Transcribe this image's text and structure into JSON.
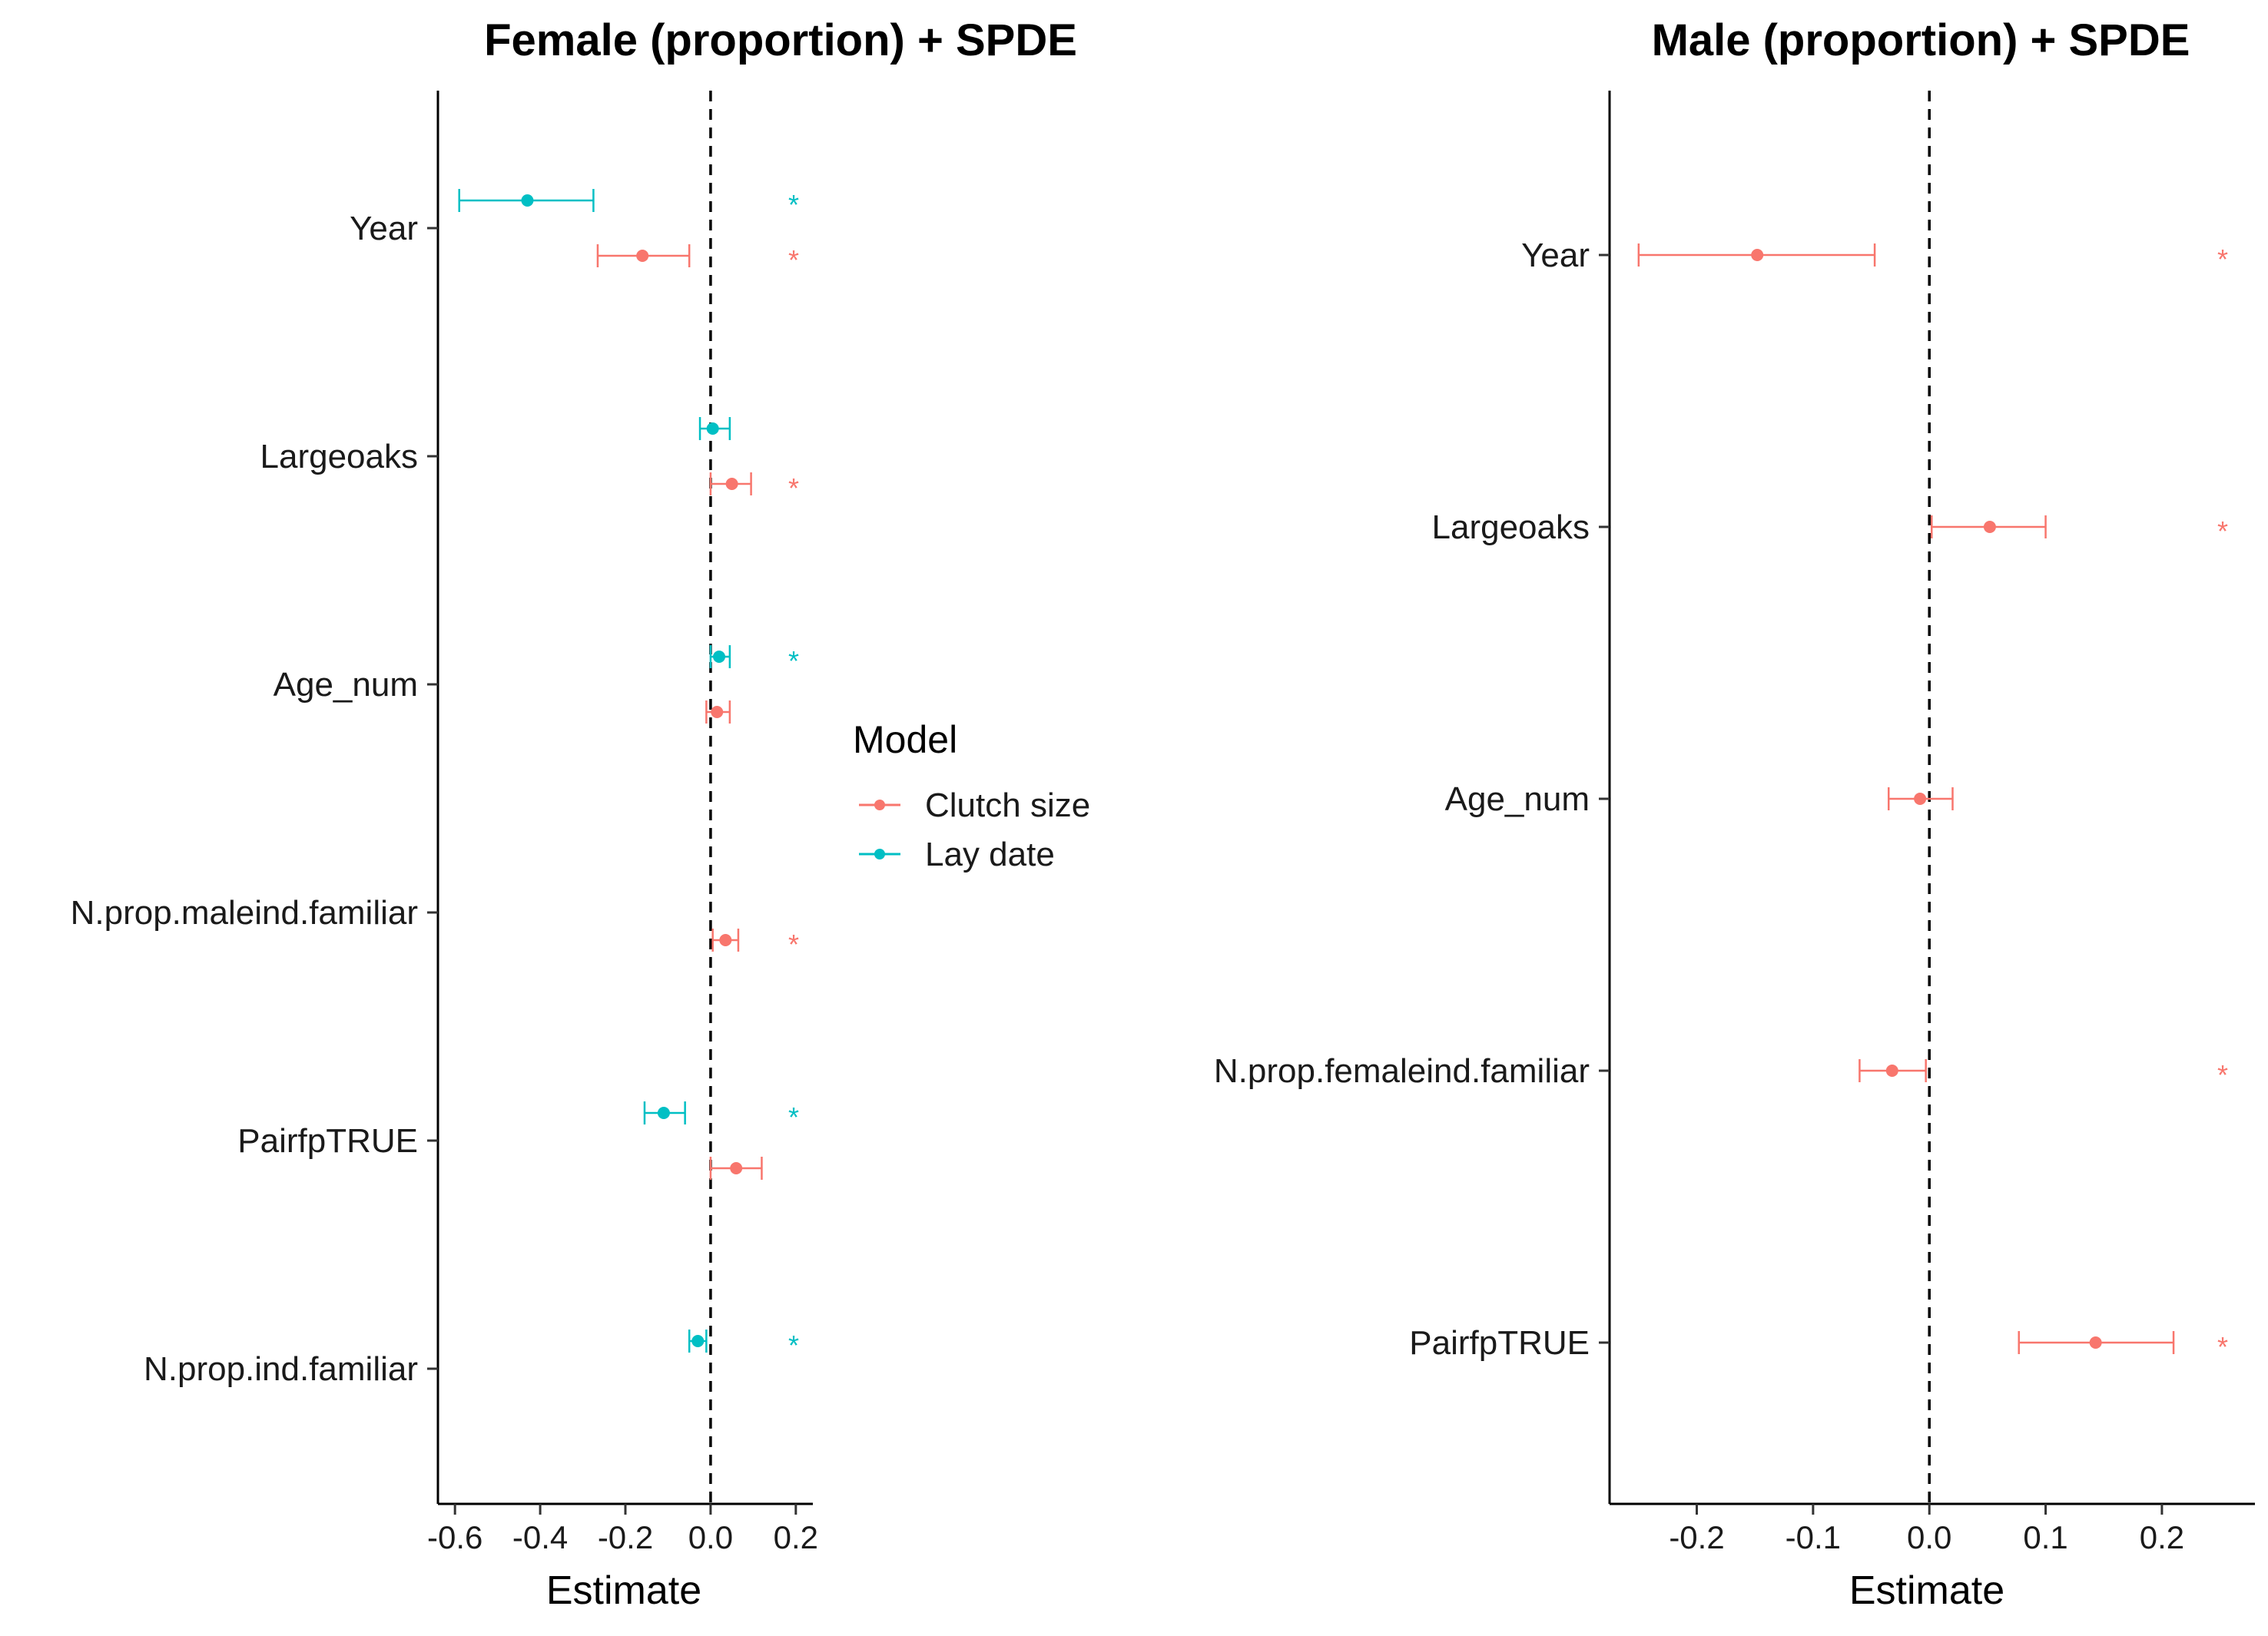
{
  "colors": {
    "clutch_size": "#F8766D",
    "lay_date": "#00BFC4",
    "axis": "#000000",
    "text": "#1a1a1a"
  },
  "legend": {
    "title": "Model",
    "items": [
      {
        "label": "Clutch size",
        "color": "#F8766D"
      },
      {
        "label": "Lay date",
        "color": "#00BFC4"
      }
    ]
  },
  "chart_data": [
    {
      "type": "forest",
      "title": "Female (proportion) + SPDE",
      "xlabel": "Estimate",
      "ylabel": "",
      "xlim": [
        -0.64,
        0.24
      ],
      "xticks": [
        -0.6,
        -0.4,
        -0.2,
        0.0,
        0.2
      ],
      "xtick_labels": [
        "-0.6",
        "-0.4",
        "-0.2",
        "0.0",
        "0.2"
      ],
      "reference_line": 0,
      "significance_marker": "*",
      "categories": [
        "Year",
        "Largeoaks",
        "Age_num",
        "N.prop.maleind.familiar",
        "PairfpTRUE",
        "N.prop.ind.familiar"
      ],
      "series": [
        {
          "name": "Clutch size",
          "color": "#F8766D",
          "points": [
            {
              "category": "Year",
              "estimate": -0.16,
              "lower": -0.265,
              "upper": -0.05,
              "significant": true
            },
            {
              "category": "Largeoaks",
              "estimate": 0.05,
              "lower": 0.0,
              "upper": 0.095,
              "significant": true
            },
            {
              "category": "Age_num",
              "estimate": 0.015,
              "lower": -0.01,
              "upper": 0.045,
              "significant": false
            },
            {
              "category": "N.prop.maleind.familiar",
              "estimate": 0.035,
              "lower": 0.005,
              "upper": 0.065,
              "significant": true
            },
            {
              "category": "PairfpTRUE",
              "estimate": 0.06,
              "lower": 0.0,
              "upper": 0.12,
              "significant": false
            }
          ]
        },
        {
          "name": "Lay date",
          "color": "#00BFC4",
          "points": [
            {
              "category": "Year",
              "estimate": -0.43,
              "lower": -0.59,
              "upper": -0.275,
              "significant": true
            },
            {
              "category": "Largeoaks",
              "estimate": 0.005,
              "lower": -0.025,
              "upper": 0.045,
              "significant": false
            },
            {
              "category": "Age_num",
              "estimate": 0.02,
              "lower": 0.0,
              "upper": 0.045,
              "significant": true
            },
            {
              "category": "PairfpTRUE",
              "estimate": -0.11,
              "lower": -0.155,
              "upper": -0.06,
              "significant": true
            },
            {
              "category": "N.prop.ind.familiar",
              "estimate": -0.03,
              "lower": -0.05,
              "upper": -0.01,
              "significant": true
            }
          ]
        }
      ]
    },
    {
      "type": "forest",
      "title": "Male (proportion) + SPDE",
      "xlabel": "Estimate",
      "ylabel": "",
      "xlim": [
        -0.275,
        0.28
      ],
      "xticks": [
        -0.2,
        -0.1,
        0.0,
        0.1,
        0.2
      ],
      "xtick_labels": [
        "-0.2",
        "-0.1",
        "0.0",
        "0.1",
        "0.2"
      ],
      "reference_line": 0,
      "significance_marker": "*",
      "categories": [
        "Year",
        "Largeoaks",
        "Age_num",
        "N.prop.femaleind.familiar",
        "PairfpTRUE"
      ],
      "series": [
        {
          "name": "Clutch size",
          "color": "#F8766D",
          "points": [
            {
              "category": "Year",
              "estimate": -0.148,
              "lower": -0.25,
              "upper": -0.047,
              "significant": true
            },
            {
              "category": "Largeoaks",
              "estimate": 0.052,
              "lower": 0.002,
              "upper": 0.1,
              "significant": true
            },
            {
              "category": "Age_num",
              "estimate": -0.008,
              "lower": -0.035,
              "upper": 0.02,
              "significant": false
            },
            {
              "category": "N.prop.femaleind.familiar",
              "estimate": -0.032,
              "lower": -0.06,
              "upper": -0.003,
              "significant": true
            },
            {
              "category": "PairfpTRUE",
              "estimate": 0.143,
              "lower": 0.077,
              "upper": 0.21,
              "significant": true
            }
          ]
        }
      ]
    }
  ]
}
